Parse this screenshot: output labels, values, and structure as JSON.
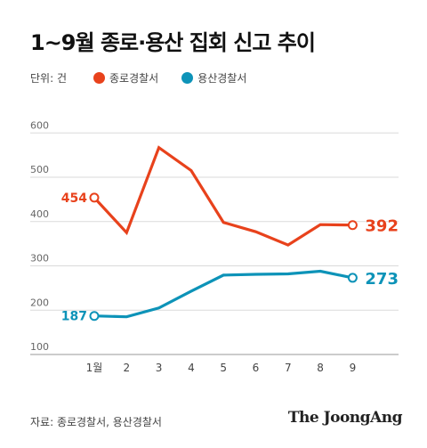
{
  "title": "1~9월 종로·용산 집회 신고 추이",
  "legend": {
    "unit": "단위: 건",
    "series": [
      {
        "name": "종로경찰서",
        "color": "#e8421c"
      },
      {
        "name": "용산경찰서",
        "color": "#0d93b8"
      }
    ]
  },
  "chart_data": {
    "type": "line",
    "categories": [
      "1월",
      "2",
      "3",
      "4",
      "5",
      "6",
      "7",
      "8",
      "9"
    ],
    "yticks": [
      100,
      200,
      300,
      400,
      500,
      600
    ],
    "ylim": [
      100,
      650
    ],
    "grid": true,
    "series": [
      {
        "name": "종로경찰서",
        "color": "#e8421c",
        "values": [
          454,
          375,
          567,
          515,
          398,
          377,
          347,
          393,
          392
        ]
      },
      {
        "name": "용산경찰서",
        "color": "#0d93b8",
        "values": [
          187,
          185,
          205,
          243,
          279,
          281,
          282,
          288,
          273
        ]
      }
    ],
    "annotations": [
      {
        "series": 0,
        "point": 0,
        "label": "454"
      },
      {
        "series": 0,
        "point": 8,
        "label": "392"
      },
      {
        "series": 1,
        "point": 0,
        "label": "187"
      },
      {
        "series": 1,
        "point": 8,
        "label": "273"
      }
    ]
  },
  "source": "자료: 종로경찰서, 용산경찰서",
  "logo": "The JoongAng"
}
